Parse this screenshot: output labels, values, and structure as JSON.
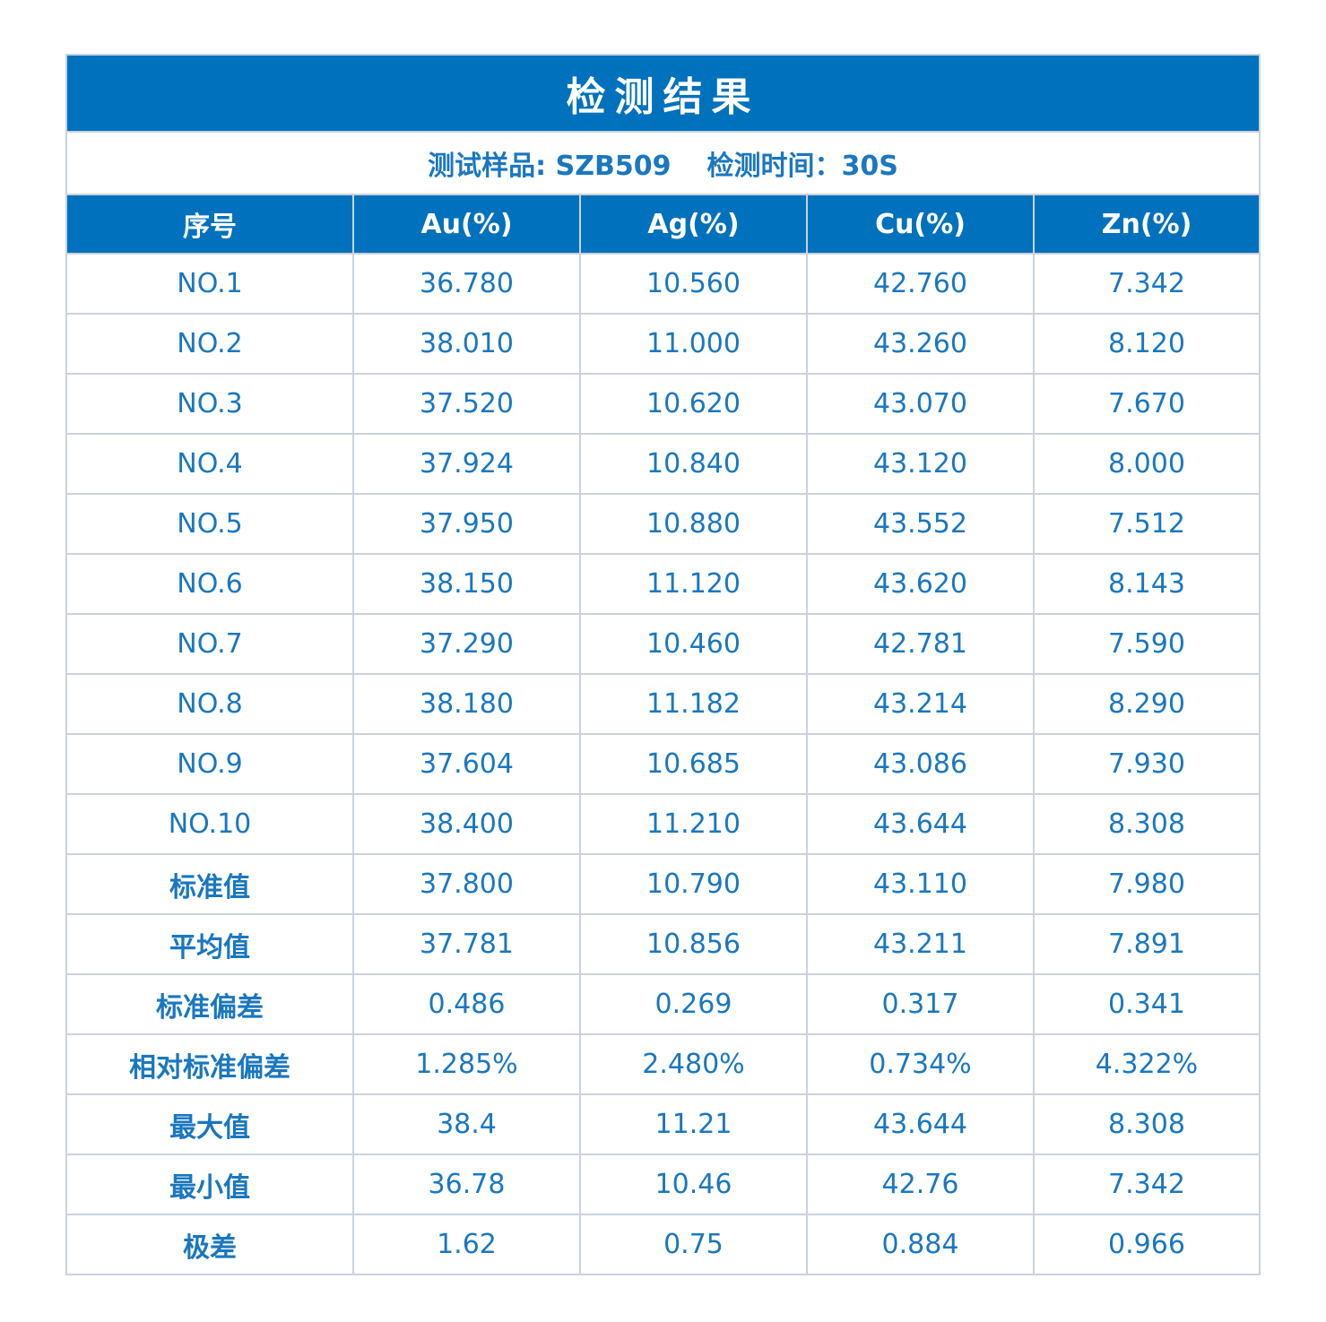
{
  "title": "检测结果",
  "info": {
    "sample": "测试样品: SZB509",
    "time": "检测时间：30S"
  },
  "columns": [
    "序号",
    "Au(%)",
    "Ag(%)",
    "Cu(%)",
    "Zn(%)"
  ],
  "rows": [
    {
      "label": "NO.1",
      "bold": false,
      "values": [
        "36.780",
        "10.560",
        "42.760",
        "7.342"
      ]
    },
    {
      "label": "NO.2",
      "bold": false,
      "values": [
        "38.010",
        "11.000",
        "43.260",
        "8.120"
      ]
    },
    {
      "label": "NO.3",
      "bold": false,
      "values": [
        "37.520",
        "10.620",
        "43.070",
        "7.670"
      ]
    },
    {
      "label": "NO.4",
      "bold": false,
      "values": [
        "37.924",
        "10.840",
        "43.120",
        "8.000"
      ]
    },
    {
      "label": "NO.5",
      "bold": false,
      "values": [
        "37.950",
        "10.880",
        "43.552",
        "7.512"
      ]
    },
    {
      "label": "NO.6",
      "bold": false,
      "values": [
        "38.150",
        "11.120",
        "43.620",
        "8.143"
      ]
    },
    {
      "label": "NO.7",
      "bold": false,
      "values": [
        "37.290",
        "10.460",
        "42.781",
        "7.590"
      ]
    },
    {
      "label": "NO.8",
      "bold": false,
      "values": [
        "38.180",
        "11.182",
        "43.214",
        "8.290"
      ]
    },
    {
      "label": "NO.9",
      "bold": false,
      "values": [
        "37.604",
        "10.685",
        "43.086",
        "7.930"
      ]
    },
    {
      "label": "NO.10",
      "bold": false,
      "values": [
        "38.400",
        "11.210",
        "43.644",
        "8.308"
      ]
    },
    {
      "label": "标准值",
      "bold": true,
      "values": [
        "37.800",
        "10.790",
        "43.110",
        "7.980"
      ]
    },
    {
      "label": "平均值",
      "bold": true,
      "values": [
        "37.781",
        "10.856",
        "43.211",
        "7.891"
      ]
    },
    {
      "label": "标准偏差",
      "bold": true,
      "values": [
        "0.486",
        "0.269",
        "0.317",
        "0.341"
      ]
    },
    {
      "label": "相对标准偏差",
      "bold": true,
      "values": [
        "1.285%",
        "2.480%",
        "0.734%",
        "4.322%"
      ]
    },
    {
      "label": "最大值",
      "bold": true,
      "values": [
        "38.4",
        "11.21",
        "43.644",
        "8.308"
      ]
    },
    {
      "label": "最小值",
      "bold": true,
      "values": [
        "36.78",
        "10.46",
        "42.76",
        "7.342"
      ]
    },
    {
      "label": "极差",
      "bold": true,
      "values": [
        "1.62",
        "0.75",
        "0.884",
        "0.966"
      ]
    }
  ],
  "colors": {
    "header_bg": "#0071bc",
    "text": "#1a77c0",
    "border": "#c9d3dc"
  }
}
